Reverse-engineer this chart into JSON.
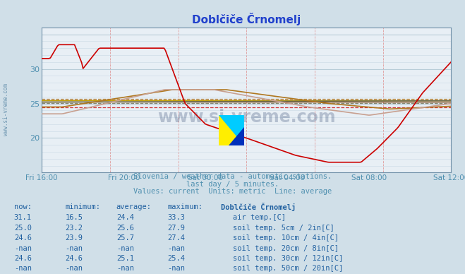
{
  "title": "Doblčiče Črnomelj",
  "bg_color": "#d0dfe8",
  "plot_bg_color": "#e8eff5",
  "xlabel_color": "#5090b0",
  "title_color": "#2040cc",
  "watermark_text": "www.si-vreme.com",
  "subtitle1": "Slovenia / weather data - automatic stations.",
  "subtitle2": "last day / 5 minutes.",
  "subtitle3": "Values: current  Units: metric  Line: average",
  "ylim": [
    15,
    36
  ],
  "ytick_vals": [
    20,
    25,
    30
  ],
  "xtick_labels": [
    "Fri 16:00",
    "Fri 20:00",
    "Sat 00:00",
    "Sat 04:00",
    "Sat 08:00",
    "Sat 12:00"
  ],
  "avg_air": 24.4,
  "avg_soil5": 25.6,
  "avg_soil10": 25.7,
  "avg_soil30": 25.1,
  "color_air": "#cc0000",
  "color_soil5": "#c8a090",
  "color_soil10": "#b07820",
  "color_soil20": "#c0a000",
  "color_soil30": "#707050",
  "color_soil50": "#784010",
  "table_rows": [
    [
      "31.1",
      "16.5",
      "24.4",
      "33.3",
      "air temp.[C]",
      "#cc0000"
    ],
    [
      "25.0",
      "23.2",
      "25.6",
      "27.9",
      "soil temp. 5cm / 2in[C]",
      "#c8a090"
    ],
    [
      "24.6",
      "23.9",
      "25.7",
      "27.4",
      "soil temp. 10cm / 4in[C]",
      "#b07820"
    ],
    [
      "-nan",
      "-nan",
      "-nan",
      "-nan",
      "soil temp. 20cm / 8in[C]",
      "#c0a000"
    ],
    [
      "24.6",
      "24.6",
      "25.1",
      "25.4",
      "soil temp. 30cm / 12in[C]",
      "#707050"
    ],
    [
      "-nan",
      "-nan",
      "-nan",
      "-nan",
      "soil temp. 50cm / 20in[C]",
      "#784010"
    ]
  ]
}
